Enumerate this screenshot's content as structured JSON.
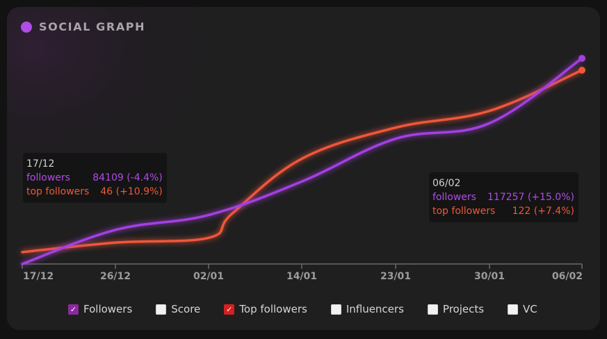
{
  "title": "SOCIAL GRAPH",
  "colors": {
    "followers": "#a43fe0",
    "top_followers": "#f0573a",
    "title_dot": "#b04ce8",
    "axis": "#6a6a6a",
    "tick_label": "#9c9c9c"
  },
  "tooltips": [
    {
      "date": "17/12",
      "followers_label": "followers",
      "followers_value": "84109 (-4.4%)",
      "top_label": "top followers",
      "top_value": "46 (+10.9%)"
    },
    {
      "date": "06/02",
      "followers_label": "followers",
      "followers_value": "117257 (+15.0%)",
      "top_label": "top followers",
      "top_value": "122 (+7.4%)"
    }
  ],
  "legend": [
    {
      "label": "Followers",
      "checked": true,
      "color": "#8a2a9e"
    },
    {
      "label": "Score",
      "checked": false,
      "color": ""
    },
    {
      "label": "Top followers",
      "checked": true,
      "color": "#d42020"
    },
    {
      "label": "Influencers",
      "checked": false,
      "color": ""
    },
    {
      "label": "Projects",
      "checked": false,
      "color": ""
    },
    {
      "label": "VC",
      "checked": false,
      "color": ""
    }
  ],
  "chart_data": {
    "type": "line",
    "title": "SOCIAL GRAPH",
    "xlabel": "",
    "ylabel": "",
    "x_ticks": [
      "17/12",
      "26/12",
      "02/01",
      "14/01",
      "23/01",
      "30/01",
      "06/02"
    ],
    "grid": false,
    "y_axis_visible": false,
    "series": [
      {
        "name": "followers",
        "color": "#a43fe0",
        "points": [
          [
            "17/12",
            84109
          ],
          [
            "26/12",
            89600
          ],
          [
            "02/01",
            92000
          ],
          [
            "14/01",
            97400
          ],
          [
            "23/01",
            104300
          ],
          [
            "30/01",
            106800
          ],
          [
            "06/02",
            117257
          ]
        ]
      },
      {
        "name": "top followers",
        "color": "#f0573a",
        "points": [
          [
            "17/12",
            46
          ],
          [
            "26/12",
            50
          ],
          [
            "02/01",
            52
          ],
          [
            "05/01",
            62
          ],
          [
            "14/01",
            85
          ],
          [
            "23/01",
            98
          ],
          [
            "30/01",
            105
          ],
          [
            "06/02",
            122
          ]
        ]
      }
    ]
  }
}
